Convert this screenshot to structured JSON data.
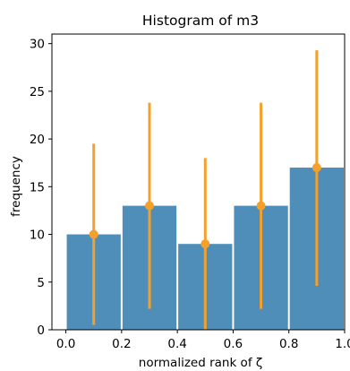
{
  "chart_data": {
    "type": "bar",
    "title": "Histogram of m3",
    "xlabel": "normalized rank of ζ",
    "ylabel": "frequency",
    "x": [
      0.1,
      0.3,
      0.5,
      0.7,
      0.9
    ],
    "bin_edges": [
      0.0,
      0.2,
      0.4,
      0.6,
      0.8,
      1.0
    ],
    "values": [
      10,
      13,
      9,
      13,
      17
    ],
    "error_low": [
      0.5,
      2.2,
      0.0,
      2.2,
      4.6
    ],
    "error_high": [
      19.5,
      23.8,
      18.0,
      23.8,
      29.3
    ],
    "xlim": [
      -0.05,
      1.0
    ],
    "ylim": [
      0,
      31
    ],
    "xticks": [
      "0.0",
      "0.2",
      "0.4",
      "0.6",
      "0.8",
      "1.0"
    ],
    "yticks": [
      "0",
      "5",
      "10",
      "15",
      "20",
      "25",
      "30"
    ],
    "bar_color": "#4f8eb8",
    "error_color": "#f5a02a",
    "grid": false
  }
}
